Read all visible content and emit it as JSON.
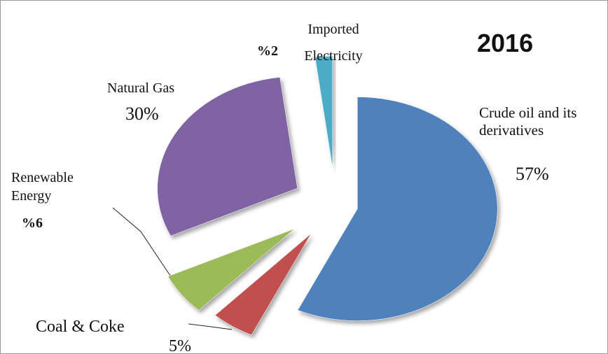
{
  "chart_data": {
    "type": "pie",
    "title": "2016",
    "categories": [
      "Crude oil and its derivatives",
      "Coal & Coke",
      "Renewable Energy",
      "Natural Gas",
      "Imported Electricity"
    ],
    "values": [
      57,
      5,
      6,
      30,
      2
    ],
    "value_labels": [
      "57%",
      "5%",
      "%6",
      "30%",
      "%2"
    ],
    "colors": [
      "#4f81bd",
      "#c0504d",
      "#9bbb59",
      "#8064a2",
      "#4bacc6"
    ]
  }
}
